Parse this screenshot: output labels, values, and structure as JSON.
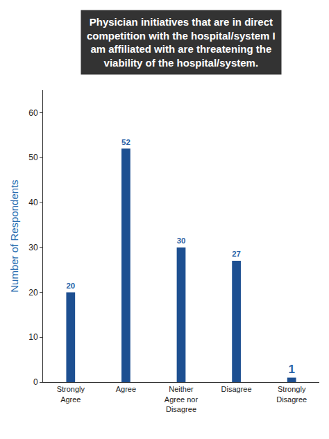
{
  "chart_data": {
    "type": "bar",
    "title": "Physician initiatives that are in direct competition with the hospital/system I am affiliated with are threatening the viability of the hospital/system.",
    "y_label": "Number of Respondents",
    "categories": [
      "Strongly Agree",
      "Agree",
      "Neither Agree nor Disagree",
      "Disagree",
      "Strongly Disagree"
    ],
    "values": [
      20,
      52,
      30,
      27,
      1
    ],
    "color": "#1d4f91",
    "ylim": [
      0,
      65
    ],
    "yticks": [
      0,
      10,
      20,
      30,
      40,
      50,
      60
    ],
    "grid": false,
    "data_labels": true
  }
}
